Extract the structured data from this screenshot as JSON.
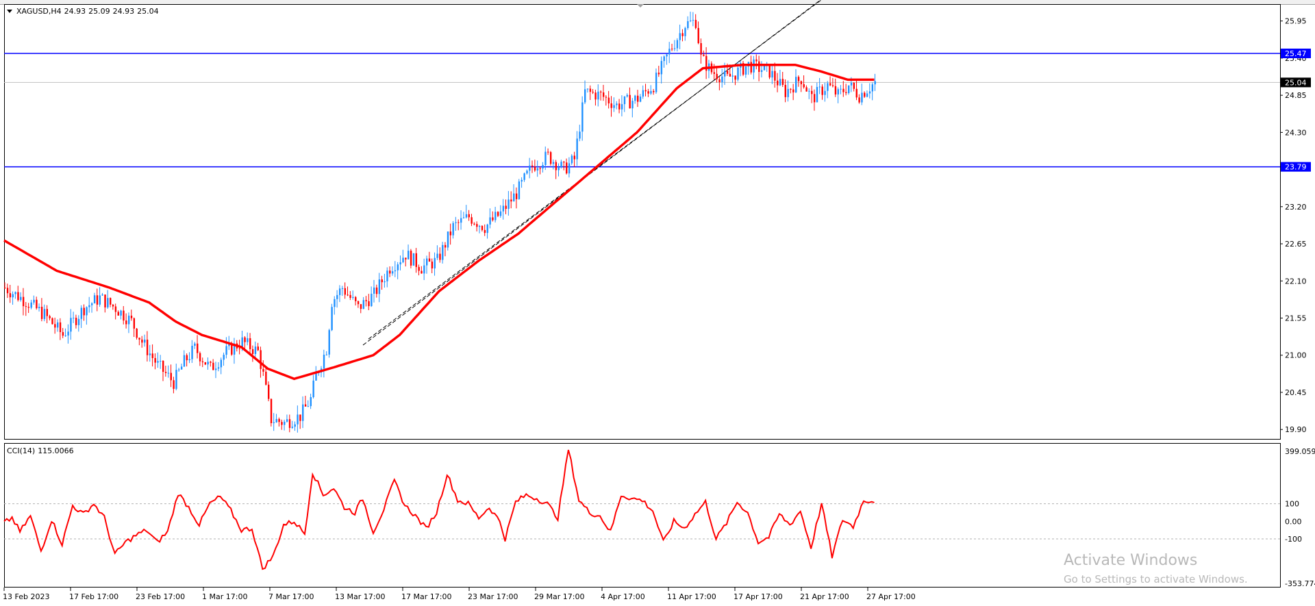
{
  "header": {
    "symbol": "XAGUSD,H4",
    "open": "24.93",
    "high": "25.09",
    "low": "24.93",
    "close": "25.04"
  },
  "cci": {
    "label": "CCI(14)",
    "value": "115.0066",
    "top": "399.059",
    "bottom": "-353.774",
    "levels": [
      "100",
      "0.00",
      "-100"
    ]
  },
  "price_axis": [
    "25.95",
    "25.40",
    "24.85",
    "24.30",
    "23.20",
    "22.65",
    "22.10",
    "21.55",
    "21.00",
    "20.45",
    "19.90"
  ],
  "hlines": [
    {
      "price": "25.47",
      "color": "#0000ff",
      "value": 25.47
    },
    {
      "price": "23.79",
      "color": "#0000ff",
      "value": 23.79
    }
  ],
  "current_price": {
    "label": "25.04",
    "value": 25.04
  },
  "time_axis": [
    "13 Feb 2023",
    "17 Feb 17:00",
    "23 Feb 17:00",
    "1 Mar 17:00",
    "7 Mar 17:00",
    "13 Mar 17:00",
    "17 Mar 17:00",
    "23 Mar 17:00",
    "29 Mar 17:00",
    "4 Apr 17:00",
    "11 Apr 17:00",
    "17 Apr 17:00",
    "21 Apr 17:00",
    "27 Apr 17:00"
  ],
  "watermark": {
    "title": "Activate Windows",
    "subtitle": "Go to Settings to activate Windows."
  },
  "colors": {
    "bull": "#1e90ff",
    "bear": "#ff0000",
    "ma": "#ff0000",
    "cci": "#ff0000",
    "levelline": "#0000ff"
  },
  "chart_data": {
    "type": "candlestick",
    "title": "XAGUSD,H4",
    "ylim": [
      19.75,
      26.2
    ],
    "ma_anchors": [
      [
        0,
        22.7
      ],
      [
        20,
        22.25
      ],
      [
        40,
        22.0
      ],
      [
        55,
        21.78
      ],
      [
        65,
        21.5
      ],
      [
        75,
        21.3
      ],
      [
        90,
        21.12
      ],
      [
        100,
        20.8
      ],
      [
        110,
        20.65
      ],
      [
        125,
        20.82
      ],
      [
        140,
        21.0
      ],
      [
        150,
        21.3
      ],
      [
        165,
        21.95
      ],
      [
        180,
        22.4
      ],
      [
        195,
        22.8
      ],
      [
        210,
        23.3
      ],
      [
        225,
        23.8
      ],
      [
        240,
        24.3
      ],
      [
        255,
        24.95
      ],
      [
        265,
        25.25
      ],
      [
        280,
        25.3
      ],
      [
        300,
        25.3
      ],
      [
        310,
        25.2
      ],
      [
        320,
        25.08
      ],
      [
        330,
        25.08
      ]
    ],
    "close_anchors": [
      [
        0,
        22.0
      ],
      [
        8,
        21.8
      ],
      [
        15,
        21.6
      ],
      [
        22,
        21.3
      ],
      [
        26,
        21.5
      ],
      [
        30,
        21.7
      ],
      [
        36,
        21.85
      ],
      [
        42,
        21.7
      ],
      [
        48,
        21.5
      ],
      [
        52,
        21.2
      ],
      [
        58,
        20.85
      ],
      [
        64,
        20.6
      ],
      [
        68,
        20.9
      ],
      [
        72,
        21.1
      ],
      [
        78,
        20.8
      ],
      [
        84,
        21.05
      ],
      [
        90,
        21.2
      ],
      [
        96,
        21.05
      ],
      [
        98,
        20.7
      ],
      [
        101,
        20.05
      ],
      [
        106,
        20.0
      ],
      [
        112,
        20.1
      ],
      [
        116,
        20.35
      ],
      [
        118,
        20.7
      ],
      [
        122,
        21.1
      ],
      [
        124,
        21.8
      ],
      [
        128,
        22.0
      ],
      [
        134,
        21.7
      ],
      [
        140,
        21.9
      ],
      [
        146,
        22.3
      ],
      [
        152,
        22.5
      ],
      [
        158,
        22.3
      ],
      [
        164,
        22.4
      ],
      [
        170,
        22.9
      ],
      [
        176,
        23.05
      ],
      [
        182,
        22.9
      ],
      [
        188,
        23.1
      ],
      [
        194,
        23.4
      ],
      [
        200,
        23.8
      ],
      [
        206,
        23.95
      ],
      [
        212,
        23.75
      ],
      [
        216,
        23.9
      ],
      [
        220,
        24.9
      ],
      [
        226,
        24.85
      ],
      [
        232,
        24.7
      ],
      [
        240,
        24.8
      ],
      [
        246,
        25.0
      ],
      [
        252,
        25.5
      ],
      [
        258,
        25.9
      ],
      [
        262,
        25.95
      ],
      [
        264,
        25.4
      ],
      [
        268,
        25.2
      ],
      [
        274,
        25.1
      ],
      [
        282,
        25.3
      ],
      [
        290,
        25.2
      ],
      [
        296,
        24.9
      ],
      [
        302,
        25.1
      ],
      [
        306,
        24.8
      ],
      [
        312,
        25.0
      ],
      [
        316,
        24.85
      ],
      [
        320,
        25.0
      ],
      [
        324,
        24.85
      ],
      [
        330,
        25.04
      ]
    ],
    "cci_anchors": [
      [
        0,
        -10
      ],
      [
        3,
        20
      ],
      [
        6,
        -60
      ],
      [
        10,
        30
      ],
      [
        14,
        -170
      ],
      [
        18,
        10
      ],
      [
        22,
        -130
      ],
      [
        26,
        90
      ],
      [
        30,
        40
      ],
      [
        34,
        100
      ],
      [
        38,
        20
      ],
      [
        42,
        -190
      ],
      [
        46,
        -120
      ],
      [
        50,
        -80
      ],
      [
        54,
        -50
      ],
      [
        58,
        -120
      ],
      [
        62,
        -60
      ],
      [
        66,
        160
      ],
      [
        70,
        80
      ],
      [
        74,
        -20
      ],
      [
        78,
        100
      ],
      [
        82,
        140
      ],
      [
        86,
        60
      ],
      [
        90,
        -50
      ],
      [
        94,
        -40
      ],
      [
        98,
        -270
      ],
      [
        102,
        -200
      ],
      [
        106,
        -20
      ],
      [
        110,
        0
      ],
      [
        114,
        -70
      ],
      [
        117,
        280
      ],
      [
        121,
        150
      ],
      [
        125,
        190
      ],
      [
        129,
        80
      ],
      [
        133,
        50
      ],
      [
        136,
        130
      ],
      [
        140,
        -60
      ],
      [
        144,
        70
      ],
      [
        148,
        230
      ],
      [
        152,
        90
      ],
      [
        156,
        30
      ],
      [
        160,
        -40
      ],
      [
        164,
        50
      ],
      [
        168,
        270
      ],
      [
        172,
        120
      ],
      [
        176,
        100
      ],
      [
        180,
        20
      ],
      [
        184,
        80
      ],
      [
        188,
        0
      ],
      [
        190,
        -100
      ],
      [
        194,
        110
      ],
      [
        198,
        150
      ],
      [
        202,
        130
      ],
      [
        206,
        100
      ],
      [
        210,
        20
      ],
      [
        214,
        410
      ],
      [
        218,
        120
      ],
      [
        222,
        50
      ],
      [
        226,
        30
      ],
      [
        230,
        -60
      ],
      [
        234,
        150
      ],
      [
        238,
        130
      ],
      [
        242,
        120
      ],
      [
        246,
        60
      ],
      [
        250,
        -120
      ],
      [
        254,
        0
      ],
      [
        258,
        -40
      ],
      [
        262,
        40
      ],
      [
        266,
        110
      ],
      [
        270,
        -100
      ],
      [
        274,
        -10
      ],
      [
        278,
        110
      ],
      [
        282,
        50
      ],
      [
        286,
        -120
      ],
      [
        290,
        -90
      ],
      [
        294,
        40
      ],
      [
        298,
        -20
      ],
      [
        302,
        60
      ],
      [
        306,
        -150
      ],
      [
        310,
        100
      ],
      [
        314,
        -200
      ],
      [
        318,
        10
      ],
      [
        322,
        -30
      ],
      [
        326,
        120
      ],
      [
        330,
        115
      ]
    ]
  }
}
